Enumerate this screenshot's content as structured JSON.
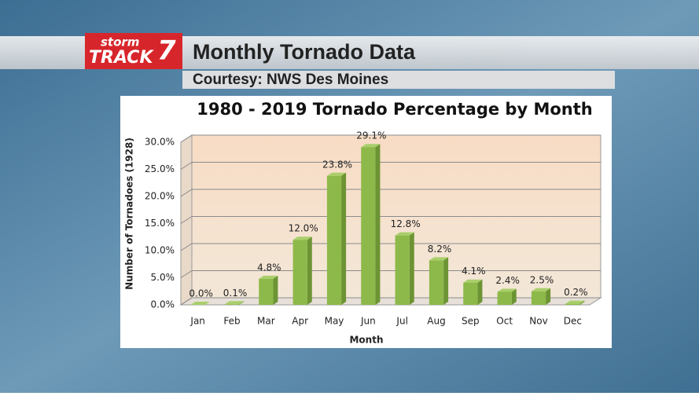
{
  "header": {
    "logo_top": "storm",
    "logo_main": "TRACK",
    "logo_number": "7",
    "title": "Monthly Tornado Data",
    "subtitle": "Courtesy: NWS Des Moines"
  },
  "chart_data": {
    "type": "bar",
    "title": "1980 - 2019 Tornado Percentage by Month",
    "x_label": "Month",
    "y_label": "Number of Tornadoes (1928)",
    "categories": [
      "Jan",
      "Feb",
      "Mar",
      "Apr",
      "May",
      "Jun",
      "Jul",
      "Aug",
      "Sep",
      "Oct",
      "Nov",
      "Dec"
    ],
    "values": [
      0.0,
      0.1,
      4.8,
      12.0,
      23.8,
      29.1,
      12.8,
      8.2,
      4.1,
      2.4,
      2.5,
      0.2
    ],
    "value_labels": [
      "0.0%",
      "0.1%",
      "4.8%",
      "12.0%",
      "23.8%",
      "29.1%",
      "12.8%",
      "8.2%",
      "4.1%",
      "2.4%",
      "2.5%",
      "0.2%"
    ],
    "color": "#8db94a",
    "ylim": [
      0,
      30
    ],
    "yticks": [
      {
        "value": 0,
        "label": "0.0%"
      },
      {
        "value": 5,
        "label": "5.0%"
      },
      {
        "value": 10,
        "label": "10.0%"
      },
      {
        "value": 15,
        "label": "15.0%"
      },
      {
        "value": 20,
        "label": "20.0%"
      },
      {
        "value": 25,
        "label": "25.0%"
      },
      {
        "value": 30,
        "label": "30.0%"
      }
    ],
    "grid": true
  }
}
